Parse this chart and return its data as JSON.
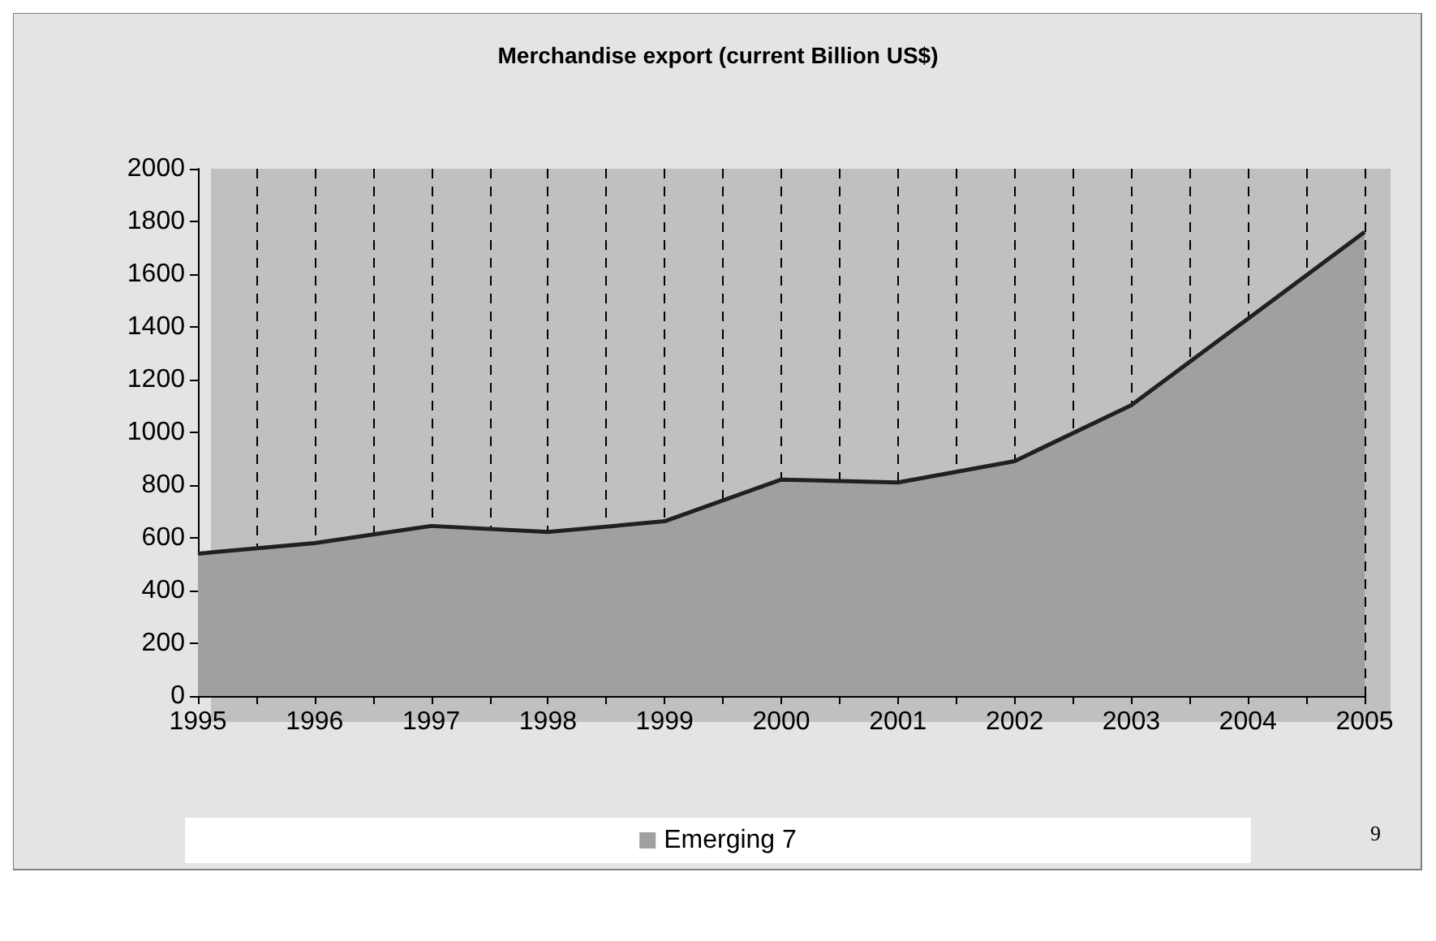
{
  "chart_data": {
    "type": "area",
    "title": "Merchandise export (current Billion US$)",
    "x": [
      1995,
      1996,
      1997,
      1998,
      1999,
      2000,
      2001,
      2002,
      2003,
      2004,
      2005
    ],
    "series": [
      {
        "name": "Emerging 7",
        "color": "#a0a0a0",
        "values": [
          540,
          580,
          645,
          622,
          663,
          821,
          810,
          891,
          1103,
          1431,
          1760
        ]
      }
    ],
    "xlim": [
      1995,
      2005
    ],
    "xticks": [
      1995,
      {
        "value": 1995.5,
        "label": null
      },
      1996,
      {
        "value": 1996.5,
        "label": null
      },
      1997,
      {
        "value": 1997.5,
        "label": null
      },
      1998,
      {
        "value": 1998.5,
        "label": null
      },
      1999,
      {
        "value": 1999.5,
        "label": null
      },
      2000,
      {
        "value": 2000.5,
        "label": null
      },
      2001,
      {
        "value": 2001.5,
        "label": null
      },
      2002,
      {
        "value": 2002.5,
        "label": null
      },
      2003,
      {
        "value": 2003.5,
        "label": null
      },
      2004,
      {
        "value": 2004.5,
        "label": null
      },
      2005
    ],
    "ylim": [
      0,
      2000
    ],
    "yticks": [
      0,
      200,
      400,
      600,
      800,
      1000,
      1200,
      1400,
      1600,
      1800,
      2000
    ],
    "grid": "x",
    "legend": "bottom",
    "marker": "none",
    "annotations": [
      "9"
    ]
  }
}
